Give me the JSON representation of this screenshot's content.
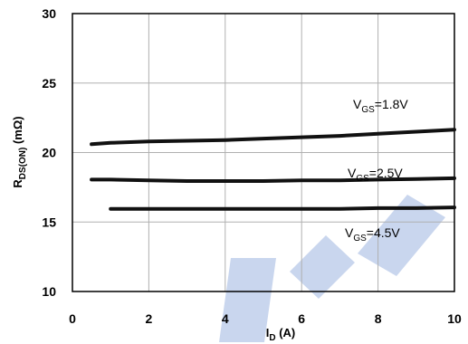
{
  "chart_data": {
    "type": "line",
    "xlabel": {
      "main": "I",
      "sub": "D",
      "rest": " (A)"
    },
    "ylabel": {
      "main": "R",
      "sub": "DS(ON)",
      "rest": " (mΩ)"
    },
    "xlim": [
      0,
      10
    ],
    "ylim": [
      10,
      30
    ],
    "xticks": [
      0,
      2,
      4,
      6,
      8,
      10
    ],
    "yticks": [
      10,
      15,
      20,
      25,
      30
    ],
    "grid": true,
    "legend": "inline",
    "series": [
      {
        "name": "VGS=1.8V",
        "label": {
          "main": "V",
          "sub": "GS",
          "rest": "=1.8V"
        },
        "x": [
          0.5,
          1,
          2,
          3,
          4,
          5,
          6,
          7,
          8,
          9,
          10
        ],
        "y": [
          20.6,
          20.7,
          20.8,
          20.85,
          20.9,
          21.0,
          21.1,
          21.2,
          21.35,
          21.5,
          21.65
        ]
      },
      {
        "name": "VGS=2.5V",
        "label": {
          "main": "V",
          "sub": "GS",
          "rest": "=2.5V"
        },
        "x": [
          0.5,
          1,
          2,
          3,
          4,
          5,
          6,
          7,
          8,
          9,
          10
        ],
        "y": [
          18.05,
          18.05,
          18.0,
          17.95,
          17.95,
          17.95,
          18.0,
          18.0,
          18.05,
          18.1,
          18.15
        ]
      },
      {
        "name": "VGS=4.5V",
        "label": {
          "main": "V",
          "sub": "GS",
          "rest": "=4.5V"
        },
        "x": [
          1,
          2,
          3,
          4,
          5,
          6,
          7,
          8,
          9,
          10
        ],
        "y": [
          15.95,
          15.95,
          15.95,
          15.95,
          15.95,
          15.95,
          15.95,
          16.0,
          16.0,
          16.05
        ]
      }
    ],
    "colors": {
      "line": "#111111",
      "grid": "#b0b0b0",
      "watermark": "#c9d6ee"
    }
  }
}
